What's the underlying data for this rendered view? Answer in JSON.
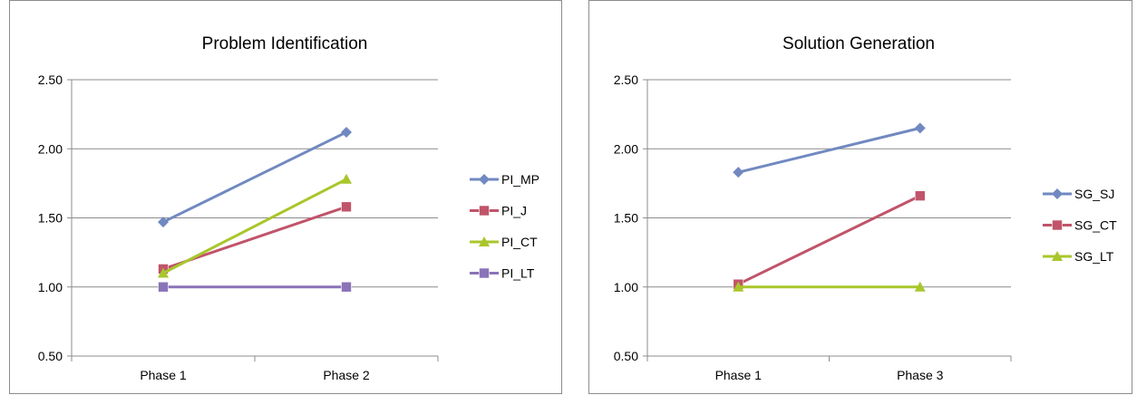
{
  "chart_data": [
    {
      "type": "line",
      "title": "Problem Identification",
      "categories": [
        "Phase 1",
        "Phase 2"
      ],
      "ylim": [
        0.5,
        2.5
      ],
      "yticks": [
        "0.50",
        "1.00",
        "1.50",
        "2.00",
        "2.50"
      ],
      "grid": true,
      "legend": "right",
      "series": [
        {
          "name": "PI_MP",
          "values": [
            1.47,
            2.12
          ],
          "color": "#7189c0",
          "marker": "diamond"
        },
        {
          "name": "PI_J",
          "values": [
            1.13,
            1.58
          ],
          "color": "#c0546a",
          "marker": "square"
        },
        {
          "name": "PI_CT",
          "values": [
            1.1,
            1.78
          ],
          "color": "#a9c62b",
          "marker": "triangle"
        },
        {
          "name": "PI_LT",
          "values": [
            1.0,
            1.0
          ],
          "color": "#8a73b8",
          "marker": "square"
        }
      ]
    },
    {
      "type": "line",
      "title": "Solution Generation",
      "categories": [
        "Phase 1",
        "Phase 3"
      ],
      "ylim": [
        0.5,
        2.5
      ],
      "yticks": [
        "0.50",
        "1.00",
        "1.50",
        "2.00",
        "2.50"
      ],
      "grid": true,
      "legend": "right",
      "series": [
        {
          "name": "SG_SJ",
          "values": [
            1.83,
            2.15
          ],
          "color": "#7189c0",
          "marker": "diamond"
        },
        {
          "name": "SG_CT",
          "values": [
            1.02,
            1.66
          ],
          "color": "#c0546a",
          "marker": "square"
        },
        {
          "name": "SG_LT",
          "values": [
            1.0,
            1.0
          ],
          "color": "#a9c62b",
          "marker": "triangle"
        }
      ]
    }
  ]
}
